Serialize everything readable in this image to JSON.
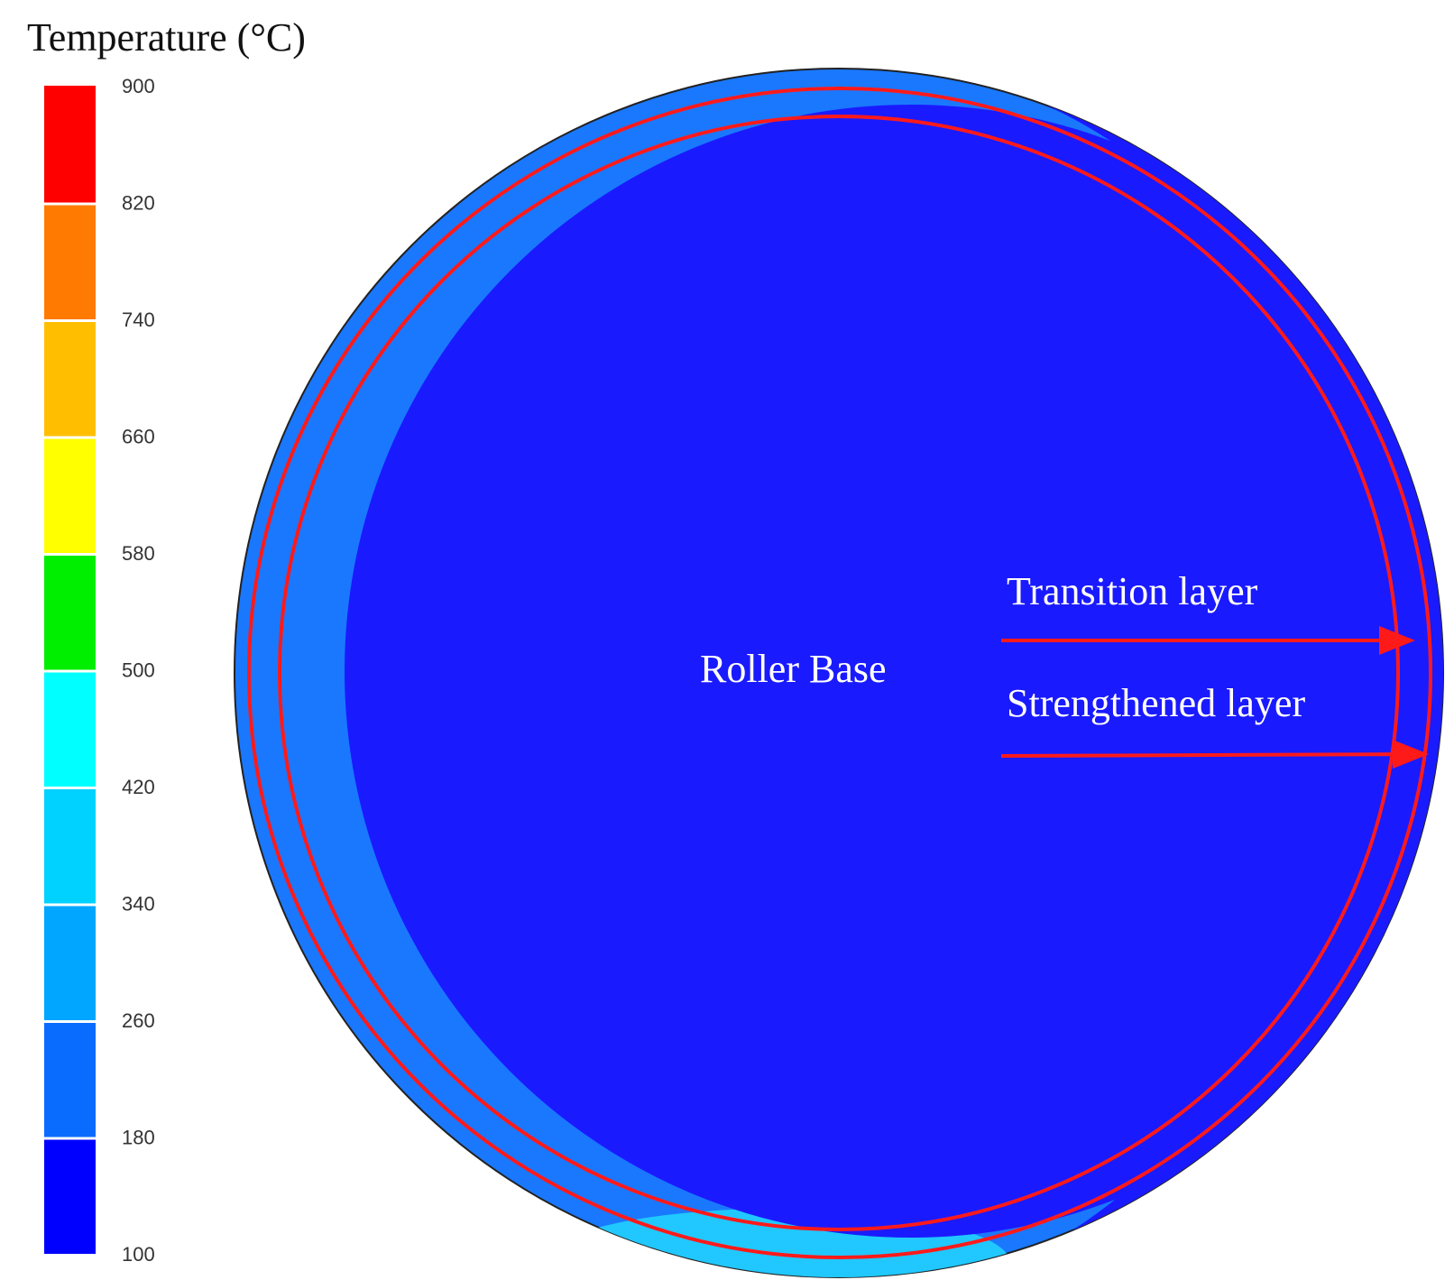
{
  "legend": {
    "title": "Temperature (°C)",
    "ticks": [
      900,
      820,
      740,
      660,
      580,
      500,
      420,
      340,
      260,
      180,
      100
    ],
    "colors": [
      "#ff0000",
      "#ff7a00",
      "#ffbf00",
      "#ffff00",
      "#00ee00",
      "#00ffff",
      "#00d2ff",
      "#00a6ff",
      "#0a6cff",
      "#0000ff"
    ]
  },
  "labels": {
    "base": "Roller Base",
    "transition": "Transition layer",
    "strengthened": "Strengthened layer"
  }
}
